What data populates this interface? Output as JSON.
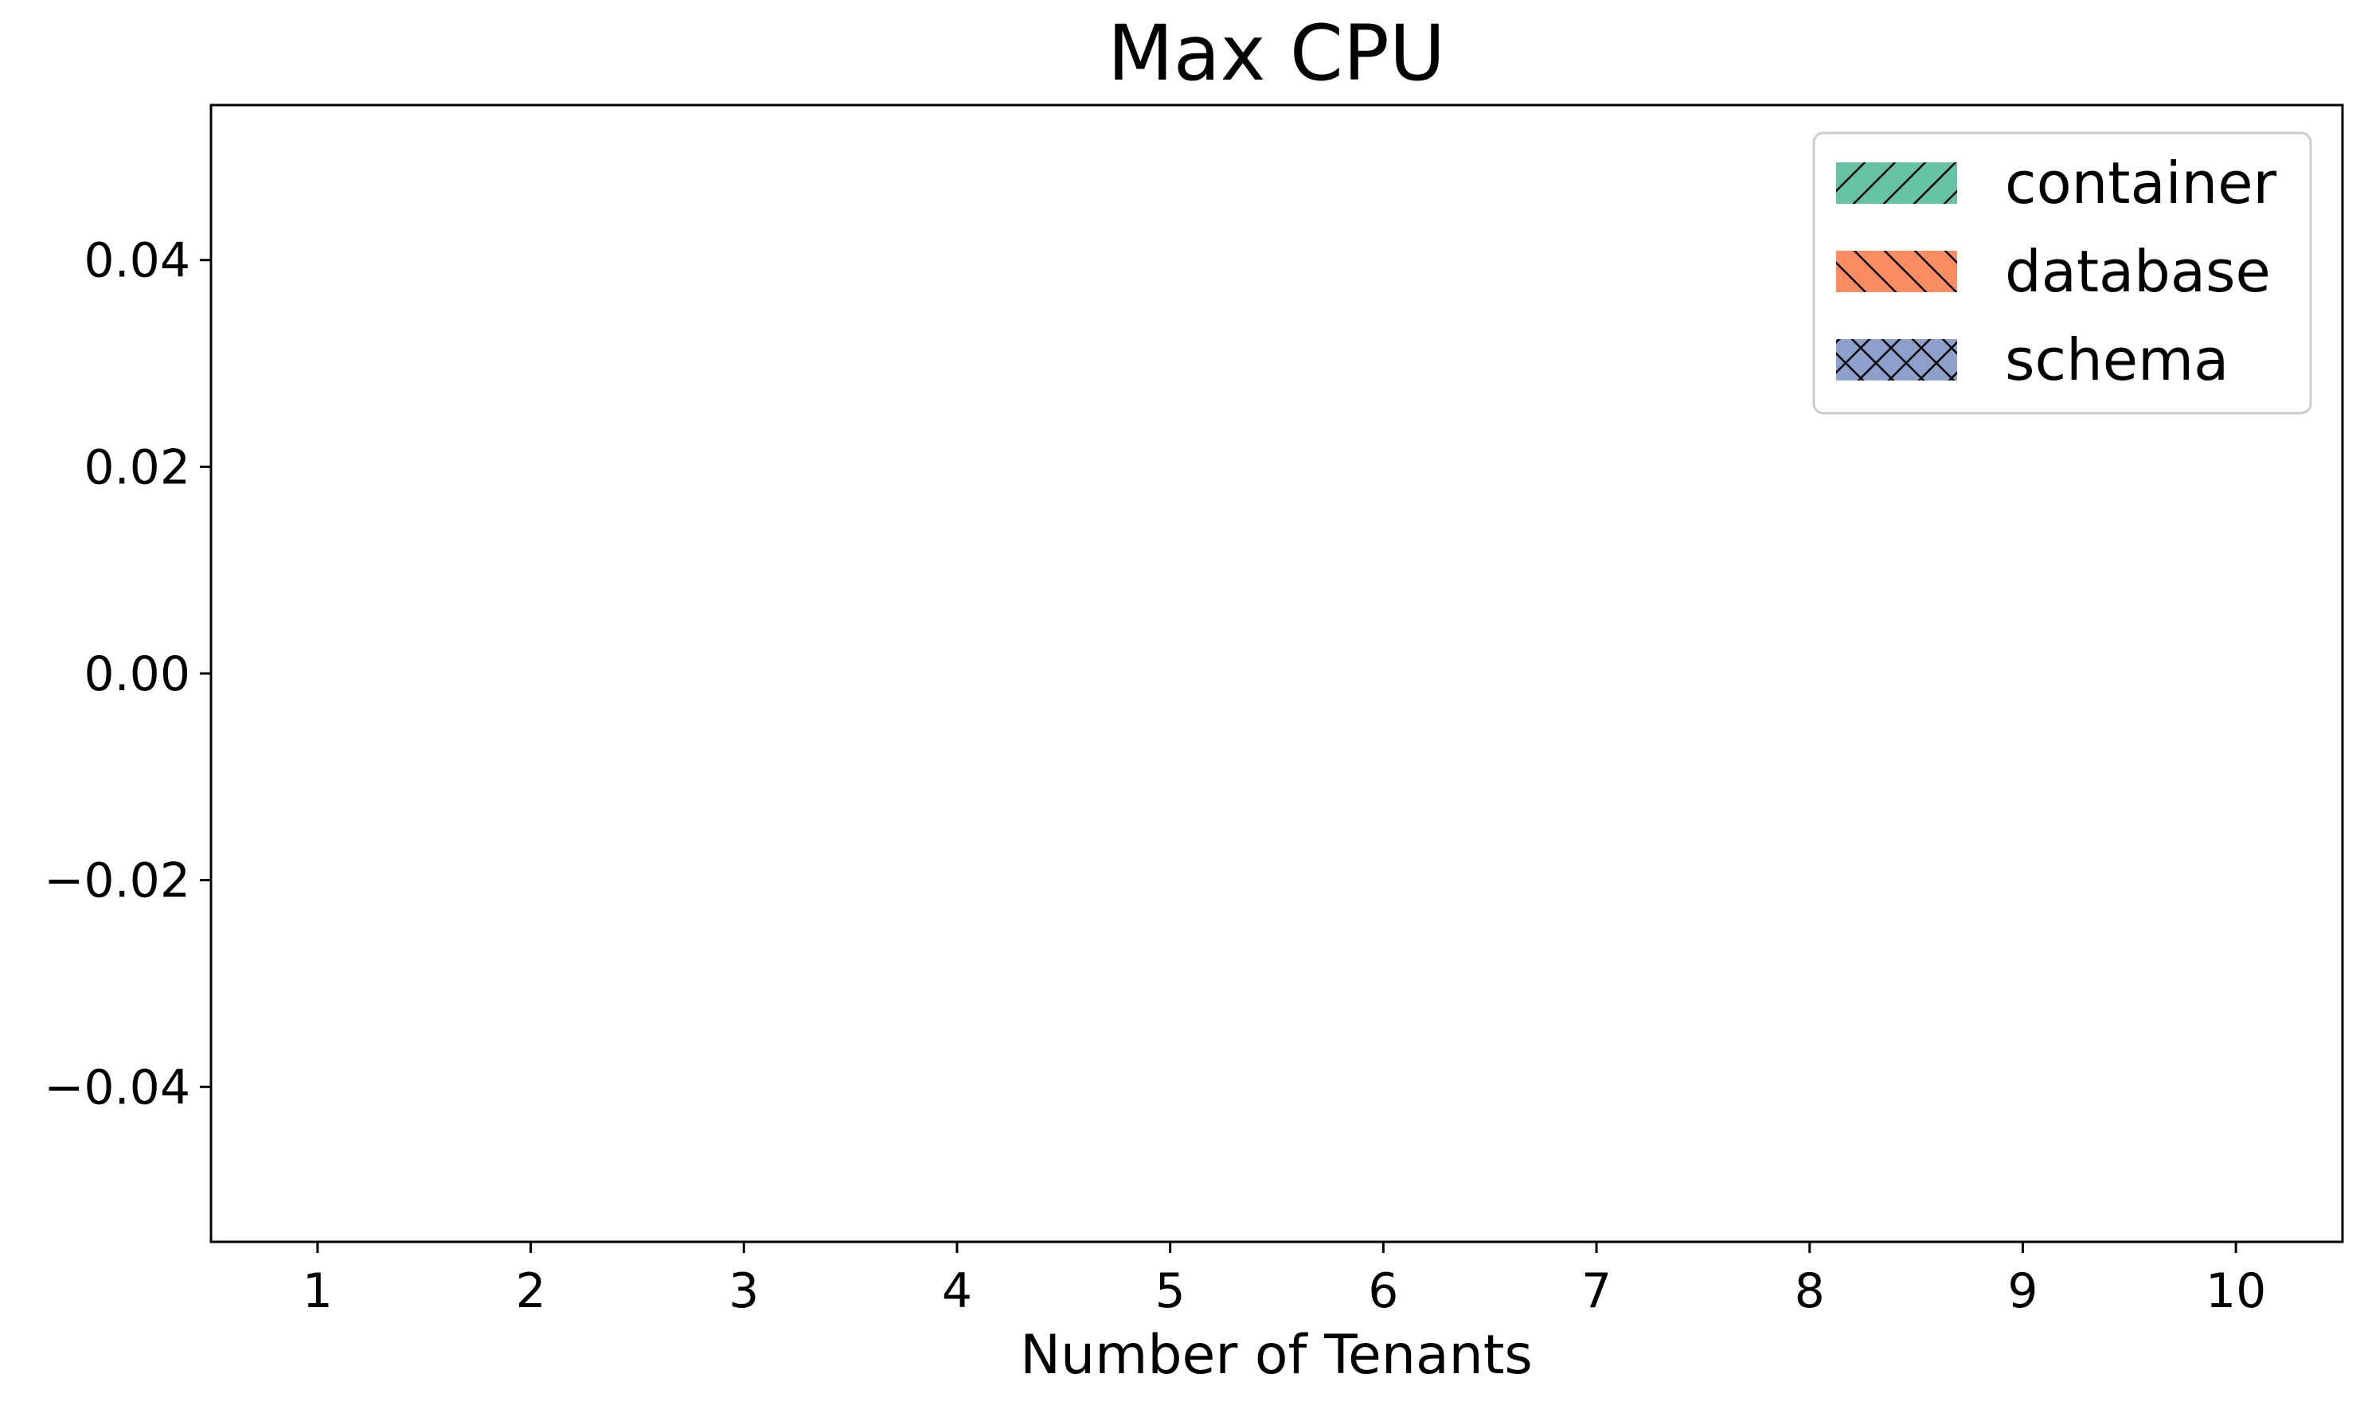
{
  "chart_data": {
    "type": "bar",
    "title": "Max CPU",
    "xlabel": "Number of Tenants",
    "ylabel": "",
    "categories": [
      "1",
      "2",
      "3",
      "4",
      "5",
      "6",
      "7",
      "8",
      "9",
      "10"
    ],
    "series": [
      {
        "name": "container",
        "values": [
          0,
          0,
          0,
          0,
          0,
          0,
          0,
          0,
          0,
          0
        ],
        "color": "#66c2a5",
        "hatch": "forward-slash"
      },
      {
        "name": "database",
        "values": [
          0,
          0,
          0,
          0,
          0,
          0,
          0,
          0,
          0,
          0
        ],
        "color": "#fc8d62",
        "hatch": "back-slash"
      },
      {
        "name": "schema",
        "values": [
          0,
          0,
          0,
          0,
          0,
          0,
          0,
          0,
          0,
          0
        ],
        "color": "#8da0cb",
        "hatch": "cross"
      }
    ],
    "ylim": [
      -0.055,
      0.055
    ],
    "yticks": [
      -0.04,
      -0.02,
      0.0,
      0.02,
      0.04
    ],
    "ytick_labels": [
      "−0.04",
      "−0.02",
      "0.00",
      "0.02",
      "0.04"
    ],
    "grid": false,
    "legend_position": "top-right"
  }
}
